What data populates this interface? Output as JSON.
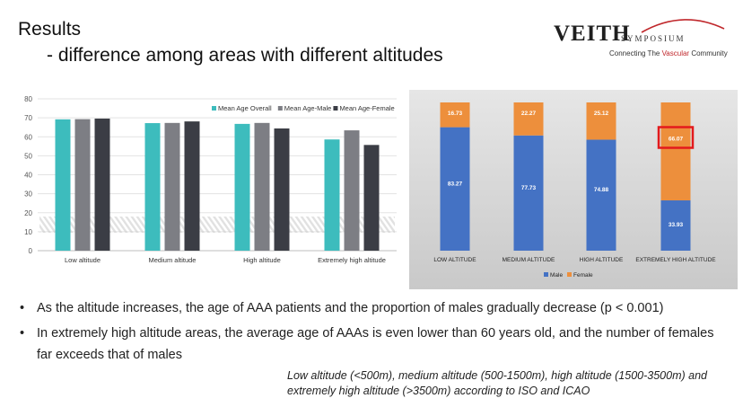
{
  "title": "Results",
  "subtitle": "- difference among areas with different altitudes",
  "logo": {
    "main": "VEITH",
    "symposium": "SYMPOSIUM",
    "tagline_pre": "Connecting The ",
    "tagline_highlight": "Vascular",
    "tagline_post": " Community"
  },
  "chart_data": [
    {
      "type": "bar",
      "title": "",
      "categories": [
        "Low altitude",
        "Medium altitude",
        "High altitude",
        "Extremely high altitude"
      ],
      "series": [
        {
          "name": "Mean Age Overall",
          "color": "#3dbcbd",
          "values": [
            69.2,
            67.2,
            66.8,
            58.6
          ]
        },
        {
          "name": "Mean Age-Male",
          "color": "#7d7e84",
          "values": [
            69.3,
            67.3,
            67.3,
            63.4
          ]
        },
        {
          "name": "Mean Age-Female",
          "color": "#3b3d45",
          "values": [
            69.6,
            68.1,
            64.4,
            55.7
          ]
        }
      ],
      "yticks": [
        "0",
        "10",
        "20",
        "30",
        "40",
        "50",
        "60",
        "70",
        "80"
      ],
      "ylim": [
        0,
        80
      ],
      "grid": true,
      "legend": "top-right"
    },
    {
      "type": "bar",
      "stacked": true,
      "title": "",
      "categories": [
        "LOW ALTITUDE",
        "MEDIUM ALTITUDE",
        "HIGH ALTITUDE",
        "EXTREMELY HIGH ALTITUDE"
      ],
      "series": [
        {
          "name": "Male",
          "color": "#4472c4",
          "values": [
            83.27,
            77.73,
            74.88,
            33.93
          ],
          "labels": [
            "83.27",
            "77.73",
            "74.88",
            "33.93"
          ]
        },
        {
          "name": "Female",
          "color": "#ed8f3c",
          "values": [
            16.73,
            22.27,
            25.12,
            66.07
          ],
          "labels": [
            "16.73",
            "22.27",
            "25.12",
            "66.07"
          ]
        }
      ],
      "ylim": [
        0,
        100
      ],
      "highlight": "EXTREMELY HIGH ALTITUDE - Female",
      "highlight_color": "#e31a1c",
      "legend": "bottom"
    }
  ],
  "bullets": [
    {
      "symbol": "•",
      "text": "As the altitude increases, the age of AAA patients and the proportion of males gradually decrease (p < 0.001)"
    },
    {
      "symbol": "•",
      "text": "In extremely high altitude areas, the average age of AAAs is even lower than 60 years old, and the number of females far exceeds that of males"
    }
  ],
  "footnote": "Low altitude (<500m), medium altitude (500-1500m), high altitude (1500-3500m) and extremely high altitude (>3500m) according to ISO and ICAO"
}
